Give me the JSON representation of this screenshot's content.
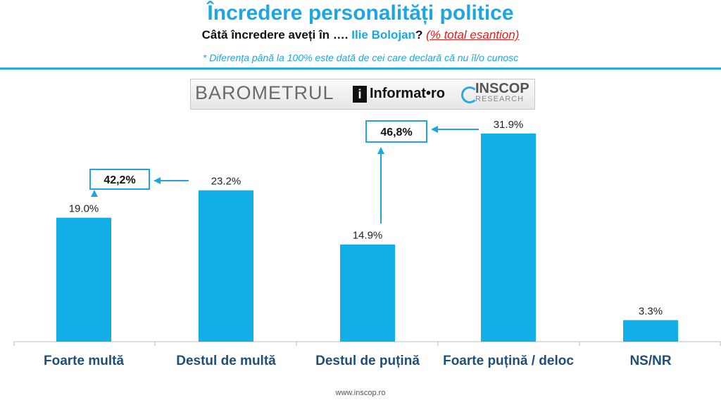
{
  "header": {
    "title": "Încredere personalități politice",
    "question_prefix": "Câtă încredere aveți în ….",
    "person": "Ilie Bolojan",
    "question_mark": "?",
    "scope": "(% total esantion)",
    "note": "* Diferența până la 100% este dată de cei care declară că nu îl/o cunosc"
  },
  "logo": {
    "barometer": "BAROMETRUL",
    "i_mark": "i",
    "informat": "Informat•ro",
    "inscop": "INSCOP",
    "research": "RESEARCH"
  },
  "footer": {
    "url": "www.inscop.ro"
  },
  "colors": {
    "bar": "#12aee8",
    "accent": "#1ea6e0",
    "red": "#e0201c"
  },
  "chart_data": {
    "type": "bar",
    "title": "Încredere personalități politice",
    "categories": [
      "Foarte multă",
      "Destul de multă",
      "Destul de puțină",
      "Foarte puțină / deloc",
      "NS/NR"
    ],
    "values": [
      19.0,
      23.2,
      14.9,
      31.9,
      3.3
    ],
    "value_labels": [
      "19.0%",
      "23.2%",
      "14.9%",
      "31.9%",
      "3.3%"
    ],
    "ylim": [
      0,
      34
    ],
    "annotations": [
      {
        "label": "42,2%",
        "sum_of": [
          "Foarte multă",
          "Destul de multă"
        ]
      },
      {
        "label": "46,8%",
        "sum_of": [
          "Destul de puțină",
          "Foarte puțină / deloc"
        ]
      }
    ]
  }
}
